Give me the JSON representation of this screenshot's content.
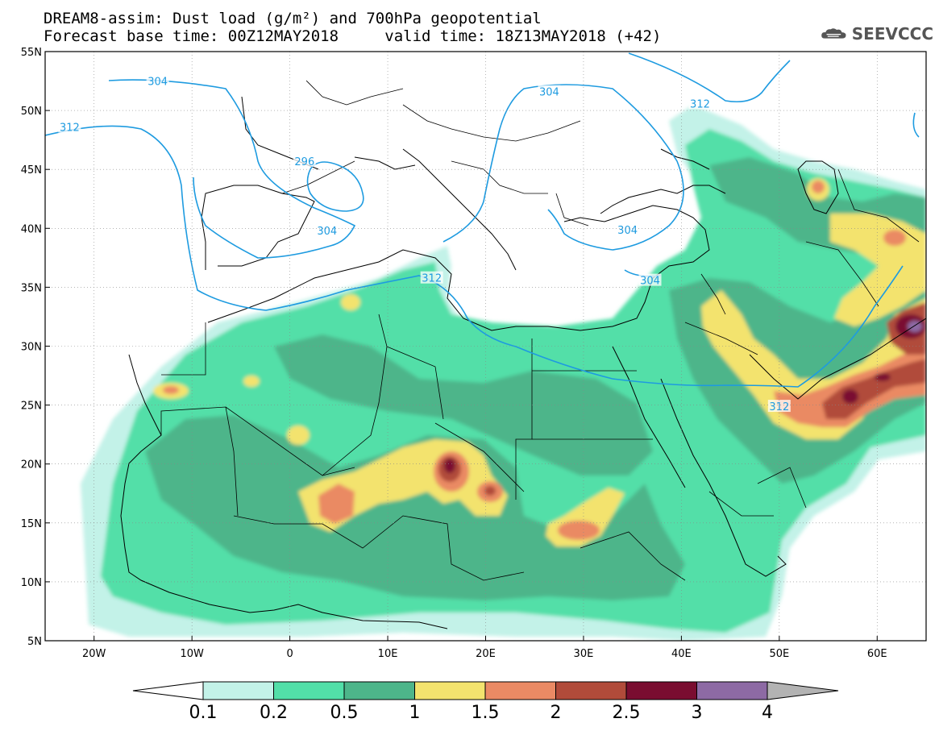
{
  "title": {
    "line1": "DREAM8-assim: Dust load (g/m²) and 700hPa geopotential",
    "line2_left": "Forecast base time: 00Z12MAY2018",
    "line2_right": "valid time: 18Z13MAY2018 (+42)"
  },
  "logo": {
    "icon": "cloud-icon",
    "text": "SEEVCCC"
  },
  "axes": {
    "lat_labels": [
      "55N",
      "50N",
      "45N",
      "40N",
      "35N",
      "30N",
      "25N",
      "20N",
      "15N",
      "10N",
      "5N"
    ],
    "lon_labels": [
      "20W",
      "10W",
      "0",
      "10E",
      "20E",
      "30E",
      "40E",
      "50E",
      "60E"
    ],
    "lat_range": [
      5,
      55
    ],
    "lon_range": [
      -25,
      65
    ],
    "grid": "dotted"
  },
  "contours": {
    "color": "#1e9be0",
    "labels": [
      {
        "text": "304",
        "lon": -13.5,
        "lat": 52.5
      },
      {
        "text": "312",
        "lon": -22.5,
        "lat": 48.6
      },
      {
        "text": "296",
        "lon": 1.5,
        "lat": 45.7
      },
      {
        "text": "304",
        "lon": 3.8,
        "lat": 39.8
      },
      {
        "text": "312",
        "lon": 14.5,
        "lat": 35.8
      },
      {
        "text": "304",
        "lon": 26.5,
        "lat": 51.6
      },
      {
        "text": "312",
        "lon": 41.9,
        "lat": 50.6
      },
      {
        "text": "304",
        "lon": 34.5,
        "lat": 39.9
      },
      {
        "text": "304",
        "lon": 36.8,
        "lat": 35.6
      },
      {
        "text": "312",
        "lon": 50.0,
        "lat": 24.9
      }
    ]
  },
  "colorbar": {
    "labels": [
      "0.1",
      "0.2",
      "0.5",
      "1",
      "1.5",
      "2",
      "2.5",
      "3",
      "4"
    ],
    "colors": [
      "#c3f2e8",
      "#52dfa8",
      "#4db58a",
      "#f3e36e",
      "#ea8a64",
      "#b14b3a",
      "#7a0d30",
      "#8d6aa4"
    ],
    "under_color": "#ffffff",
    "over_color": "#b3b3b3"
  },
  "field_colors": {
    "light": "#c3f2e8",
    "mid": "#52dfa8",
    "dark": "#4db58a",
    "yellow": "#f3e36e",
    "orange": "#ea8a64",
    "brown": "#b14b3a",
    "maroon": "#7a0d30",
    "purple": "#8d6aa4"
  }
}
